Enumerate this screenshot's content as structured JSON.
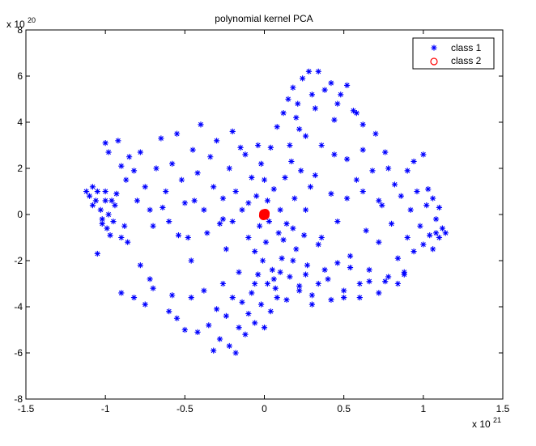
{
  "chart_data": {
    "type": "scatter",
    "title": "polynomial kernel PCA",
    "xlabel": "",
    "ylabel": "",
    "xlim": [
      -1.5,
      1.5
    ],
    "ylim": [
      -8,
      8
    ],
    "x_multiplier_label": "x 10",
    "x_multiplier_exp": "21",
    "y_multiplier_label": "x 10",
    "y_multiplier_exp": "20",
    "x_ticks": [
      -1.5,
      -1,
      -0.5,
      0,
      0.5,
      1,
      1.5
    ],
    "x_tick_labels": [
      "-1.5",
      "-1",
      "-0.5",
      "0",
      "0.5",
      "1",
      "1.5"
    ],
    "y_ticks": [
      -8,
      -6,
      -4,
      -2,
      0,
      2,
      4,
      6,
      8
    ],
    "y_tick_labels": [
      "-8",
      "-6",
      "-4",
      "-2",
      "0",
      "2",
      "4",
      "6",
      "8"
    ],
    "grid": false,
    "legend_position": "top-right",
    "series": [
      {
        "name": "class 1",
        "marker": "star",
        "color": "#0000ff",
        "points": [
          [
            -1.12,
            1.0
          ],
          [
            -1.1,
            0.8
          ],
          [
            -1.08,
            1.2
          ],
          [
            -1.06,
            0.6
          ],
          [
            -1.05,
            1.0
          ],
          [
            -1.03,
            0.2
          ],
          [
            -1.0,
            1.0
          ],
          [
            -1.0,
            0.6
          ],
          [
            -1.02,
            -0.2
          ],
          [
            -0.99,
            -0.6
          ],
          [
            -0.98,
            0.0
          ],
          [
            -0.97,
            -0.9
          ],
          [
            -0.95,
            -0.3
          ],
          [
            -0.94,
            0.4
          ],
          [
            -0.93,
            0.9
          ],
          [
            -0.9,
            -1.0
          ],
          [
            -0.88,
            -0.5
          ],
          [
            -1.05,
            -1.7
          ],
          [
            -1.0,
            3.1
          ],
          [
            -0.98,
            2.7
          ],
          [
            -0.92,
            3.2
          ],
          [
            -0.9,
            2.1
          ],
          [
            -0.87,
            1.5
          ],
          [
            -0.85,
            2.5
          ],
          [
            -0.82,
            1.9
          ],
          [
            -0.8,
            0.6
          ],
          [
            -0.78,
            2.7
          ],
          [
            -0.75,
            1.2
          ],
          [
            -0.72,
            0.2
          ],
          [
            -0.7,
            -0.5
          ],
          [
            -0.68,
            2.0
          ],
          [
            -0.65,
            3.3
          ],
          [
            -0.62,
            1.0
          ],
          [
            -0.6,
            -0.3
          ],
          [
            -0.58,
            2.2
          ],
          [
            -0.55,
            3.5
          ],
          [
            -0.52,
            1.5
          ],
          [
            -0.5,
            0.5
          ],
          [
            -0.48,
            -1.0
          ],
          [
            -0.46,
            -2.0
          ],
          [
            -0.45,
            2.8
          ],
          [
            -0.42,
            1.8
          ],
          [
            -0.4,
            3.9
          ],
          [
            -0.38,
            0.2
          ],
          [
            -0.36,
            -0.8
          ],
          [
            -0.34,
            2.5
          ],
          [
            -0.32,
            1.2
          ],
          [
            -0.3,
            3.2
          ],
          [
            -0.28,
            -0.4
          ],
          [
            -0.26,
            0.7
          ],
          [
            -0.24,
            -1.5
          ],
          [
            -0.22,
            2.0
          ],
          [
            -0.2,
            3.6
          ],
          [
            -0.18,
            1.0
          ],
          [
            -0.16,
            -2.5
          ],
          [
            -0.14,
            0.2
          ],
          [
            -0.12,
            2.6
          ],
          [
            -0.1,
            -1.0
          ],
          [
            -0.08,
            1.6
          ],
          [
            -0.06,
            -3.0
          ],
          [
            -0.05,
            0.8
          ],
          [
            -0.04,
            3.0
          ],
          [
            -0.03,
            -0.5
          ],
          [
            -0.02,
            2.2
          ],
          [
            -0.01,
            -2.0
          ],
          [
            0.0,
            1.5
          ],
          [
            0.01,
            -1.2
          ],
          [
            0.02,
            0.6
          ],
          [
            0.03,
            -0.3
          ],
          [
            0.04,
            2.9
          ],
          [
            0.05,
            -2.4
          ],
          [
            0.06,
            1.1
          ],
          [
            0.07,
            -3.2
          ],
          [
            0.08,
            3.8
          ],
          [
            0.09,
            -0.8
          ],
          [
            0.1,
            0.2
          ],
          [
            0.11,
            -1.9
          ],
          [
            0.12,
            4.4
          ],
          [
            0.13,
            1.6
          ],
          [
            0.14,
            -0.4
          ],
          [
            0.15,
            5.0
          ],
          [
            0.16,
            -2.7
          ],
          [
            0.17,
            2.3
          ],
          [
            0.18,
            5.5
          ],
          [
            0.19,
            0.7
          ],
          [
            0.2,
            -1.5
          ],
          [
            0.21,
            4.8
          ],
          [
            0.22,
            -3.1
          ],
          [
            0.23,
            1.9
          ],
          [
            0.24,
            5.9
          ],
          [
            0.25,
            -0.9
          ],
          [
            0.26,
            3.4
          ],
          [
            0.27,
            -2.2
          ],
          [
            0.28,
            6.2
          ],
          [
            0.29,
            1.2
          ],
          [
            0.3,
            -3.5
          ],
          [
            0.32,
            4.6
          ],
          [
            0.34,
            -1.3
          ],
          [
            0.36,
            3.0
          ],
          [
            0.38,
            5.4
          ],
          [
            0.4,
            -2.8
          ],
          [
            0.42,
            0.9
          ],
          [
            0.44,
            4.1
          ],
          [
            0.46,
            -0.3
          ],
          [
            0.48,
            5.2
          ],
          [
            0.5,
            -3.6
          ],
          [
            0.52,
            2.4
          ],
          [
            0.54,
            -1.8
          ],
          [
            0.56,
            4.5
          ],
          [
            0.58,
            1.5
          ],
          [
            0.6,
            -3.0
          ],
          [
            0.62,
            2.8
          ],
          [
            0.64,
            -0.7
          ],
          [
            0.66,
            -2.4
          ],
          [
            0.68,
            1.9
          ],
          [
            0.7,
            3.5
          ],
          [
            0.72,
            -1.2
          ],
          [
            0.74,
            0.4
          ],
          [
            0.76,
            -2.9
          ],
          [
            0.78,
            2.0
          ],
          [
            0.8,
            -0.4
          ],
          [
            0.82,
            1.3
          ],
          [
            0.84,
            -1.9
          ],
          [
            0.86,
            0.8
          ],
          [
            0.88,
            -2.6
          ],
          [
            0.9,
            -1.0
          ],
          [
            0.92,
            0.2
          ],
          [
            0.94,
            -1.6
          ],
          [
            0.96,
            1.0
          ],
          [
            0.98,
            -0.5
          ],
          [
            1.0,
            -1.3
          ],
          [
            1.02,
            0.4
          ],
          [
            1.04,
            -0.9
          ],
          [
            1.06,
            -1.5
          ],
          [
            1.08,
            -0.2
          ],
          [
            1.1,
            -1.0
          ],
          [
            1.12,
            -0.6
          ],
          [
            1.14,
            -0.8
          ],
          [
            1.08,
            -0.8
          ],
          [
            1.1,
            0.3
          ],
          [
            1.0,
            2.6
          ],
          [
            1.03,
            1.1
          ],
          [
            1.06,
            0.7
          ],
          [
            -0.9,
            -3.4
          ],
          [
            -0.82,
            -3.6
          ],
          [
            -0.78,
            -2.2
          ],
          [
            -0.75,
            -3.9
          ],
          [
            -0.72,
            -2.8
          ],
          [
            -0.7,
            -3.2
          ],
          [
            -0.6,
            -4.2
          ],
          [
            -0.58,
            -3.5
          ],
          [
            -0.55,
            -4.5
          ],
          [
            -0.5,
            -5.0
          ],
          [
            -0.46,
            -3.6
          ],
          [
            -0.42,
            -5.1
          ],
          [
            -0.38,
            -3.3
          ],
          [
            -0.35,
            -4.8
          ],
          [
            -0.32,
            -5.9
          ],
          [
            -0.3,
            -4.1
          ],
          [
            -0.28,
            -5.4
          ],
          [
            -0.26,
            -3.0
          ],
          [
            -0.24,
            -4.4
          ],
          [
            -0.22,
            -5.7
          ],
          [
            -0.2,
            -3.6
          ],
          [
            -0.18,
            -6.0
          ],
          [
            -0.16,
            -4.9
          ],
          [
            -0.14,
            -3.8
          ],
          [
            -0.12,
            -5.2
          ],
          [
            -0.1,
            -4.3
          ],
          [
            -0.08,
            -3.4
          ],
          [
            -0.06,
            -4.7
          ],
          [
            -0.04,
            -2.6
          ],
          [
            -0.02,
            -3.9
          ],
          [
            0.0,
            -4.9
          ],
          [
            0.02,
            -3.0
          ],
          [
            0.04,
            -4.2
          ],
          [
            0.06,
            -2.8
          ],
          [
            0.08,
            -3.6
          ],
          [
            0.1,
            -2.5
          ],
          [
            0.14,
            -3.7
          ],
          [
            0.18,
            -2.0
          ],
          [
            0.22,
            -3.3
          ],
          [
            0.26,
            -2.6
          ],
          [
            0.3,
            -3.9
          ],
          [
            0.34,
            -3.0
          ],
          [
            0.38,
            -2.4
          ],
          [
            0.42,
            -3.7
          ],
          [
            0.46,
            -2.1
          ],
          [
            0.5,
            -3.3
          ],
          [
            0.54,
            -2.3
          ],
          [
            0.6,
            -3.6
          ],
          [
            0.66,
            -2.9
          ],
          [
            0.72,
            -3.4
          ],
          [
            0.78,
            -2.7
          ],
          [
            0.84,
            -3.0
          ],
          [
            0.88,
            -2.5
          ],
          [
            -1.02,
            -0.4
          ],
          [
            -0.96,
            0.6
          ],
          [
            -1.08,
            0.4
          ],
          [
            -0.86,
            -1.2
          ],
          [
            -0.64,
            0.3
          ],
          [
            -0.54,
            -0.9
          ],
          [
            -0.44,
            0.6
          ],
          [
            -0.2,
            -0.3
          ],
          [
            -0.15,
            2.9
          ],
          [
            -0.1,
            0.5
          ],
          [
            0.18,
            -0.6
          ],
          [
            0.26,
            0.2
          ],
          [
            0.32,
            1.7
          ],
          [
            0.36,
            -1.0
          ],
          [
            0.44,
            2.6
          ],
          [
            0.52,
            0.7
          ],
          [
            0.62,
            1.0
          ],
          [
            0.72,
            0.6
          ],
          [
            0.76,
            2.7
          ],
          [
            0.9,
            1.9
          ],
          [
            0.94,
            2.3
          ],
          [
            0.16,
            3.0
          ],
          [
            0.22,
            3.7
          ],
          [
            0.34,
            6.2
          ],
          [
            0.3,
            5.2
          ],
          [
            0.2,
            4.2
          ],
          [
            0.42,
            5.7
          ],
          [
            0.46,
            4.8
          ],
          [
            0.52,
            5.6
          ],
          [
            0.58,
            4.4
          ],
          [
            0.62,
            3.9
          ],
          [
            -0.26,
            -0.2
          ],
          [
            -0.06,
            -1.6
          ],
          [
            0.12,
            -1.1
          ]
        ]
      },
      {
        "name": "class 2",
        "marker": "circle",
        "color": "#ff0000",
        "points": [
          [
            0.0,
            0.0
          ],
          [
            0.005,
            0.05
          ],
          [
            -0.005,
            -0.05
          ],
          [
            0.004,
            -0.03
          ],
          [
            -0.004,
            0.03
          ]
        ]
      }
    ]
  }
}
